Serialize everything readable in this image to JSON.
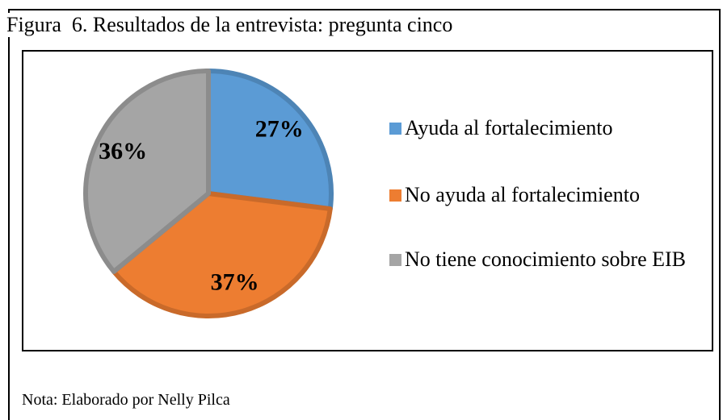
{
  "chart_data": {
    "type": "pie",
    "title": "Figura  6. Resultados de la entrevista: pregunta cinco",
    "categories": [
      "Ayuda al fortalecimiento",
      "No ayuda al fortalecimiento",
      "No tiene conocimiento sobre EIB"
    ],
    "values": [
      27,
      37,
      36
    ],
    "value_labels": [
      "27%",
      "37%",
      "36%"
    ],
    "colors": [
      "#5b9bd5",
      "#ed7d31",
      "#a5a5a5"
    ],
    "note": "Nota: Elaborado por Nelly Pilca"
  }
}
